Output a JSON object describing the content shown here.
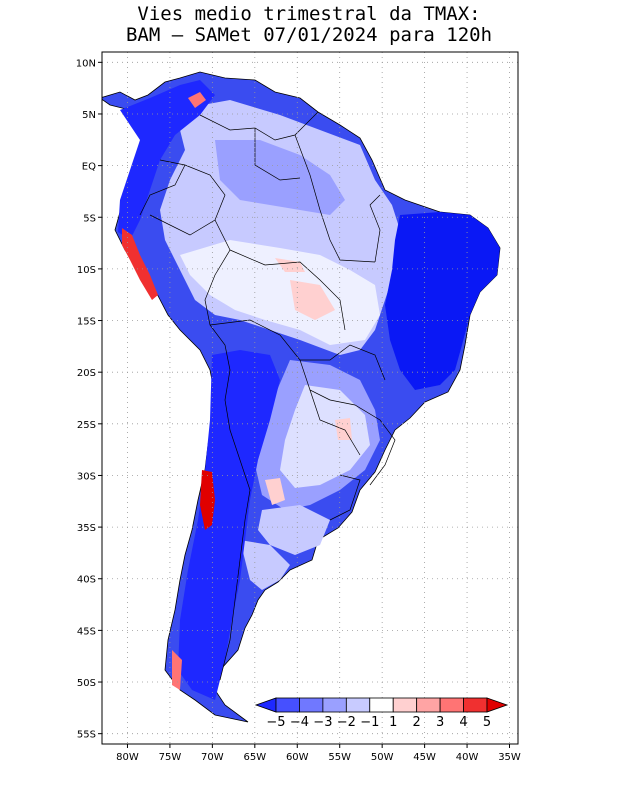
{
  "title_line1": "Vies medio trimestral da TMAX:",
  "title_line2": "BAM – SAMet 07/01/2024  para 120h",
  "map": {
    "lon_range": [
      -83,
      -34
    ],
    "lat_range": [
      -56,
      11
    ],
    "lon_ticks": [
      {
        "value": -80,
        "label": "80W"
      },
      {
        "value": -75,
        "label": "75W"
      },
      {
        "value": -70,
        "label": "70W"
      },
      {
        "value": -65,
        "label": "65W"
      },
      {
        "value": -60,
        "label": "60W"
      },
      {
        "value": -55,
        "label": "55W"
      },
      {
        "value": -50,
        "label": "50W"
      },
      {
        "value": -45,
        "label": "45W"
      },
      {
        "value": -40,
        "label": "40W"
      },
      {
        "value": -35,
        "label": "35W"
      }
    ],
    "lat_ticks": [
      {
        "value": 10,
        "label": "10N"
      },
      {
        "value": 5,
        "label": "5N"
      },
      {
        "value": 0,
        "label": "EQ"
      },
      {
        "value": -5,
        "label": "5S"
      },
      {
        "value": -10,
        "label": "10S"
      },
      {
        "value": -15,
        "label": "15S"
      },
      {
        "value": -20,
        "label": "20S"
      },
      {
        "value": -25,
        "label": "25S"
      },
      {
        "value": -30,
        "label": "30S"
      },
      {
        "value": -35,
        "label": "35S"
      },
      {
        "value": -40,
        "label": "40S"
      },
      {
        "value": -45,
        "label": "45S"
      },
      {
        "value": -50,
        "label": "50S"
      },
      {
        "value": -55,
        "label": "55S"
      }
    ],
    "grid": "dotted"
  },
  "colorbar": {
    "labels": [
      "−5",
      "−4",
      "−3",
      "−2",
      "−1",
      "1",
      "2",
      "3",
      "4",
      "5"
    ],
    "colors": [
      "#1e28ff",
      "#4650ff",
      "#7078ff",
      "#9aa0ff",
      "#c8cbff",
      "#ffffff",
      "#ffd0d0",
      "#ffa4a4",
      "#ff7474",
      "#f03030",
      "#e00000"
    ]
  }
}
